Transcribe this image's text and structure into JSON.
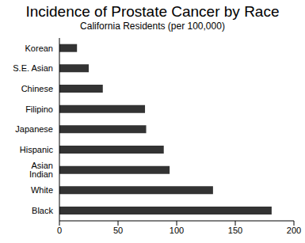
{
  "chart_data": {
    "type": "bar",
    "title": "Incidence of Prostate Cancer by Race",
    "subtitle": "California Residents (per 100,000)",
    "orientation": "horizontal",
    "categories": [
      "Korean",
      "S.E. Asian",
      "Chinese",
      "Filipino",
      "Japanese",
      "Hispanic",
      "Asian Indian",
      "White",
      "Black"
    ],
    "values": [
      15,
      25,
      37,
      73,
      74,
      89,
      94,
      131,
      181
    ],
    "color": "#333333",
    "xlim": [
      0,
      200
    ],
    "xticks": [
      0,
      50,
      100,
      150,
      200
    ],
    "grid": false
  }
}
